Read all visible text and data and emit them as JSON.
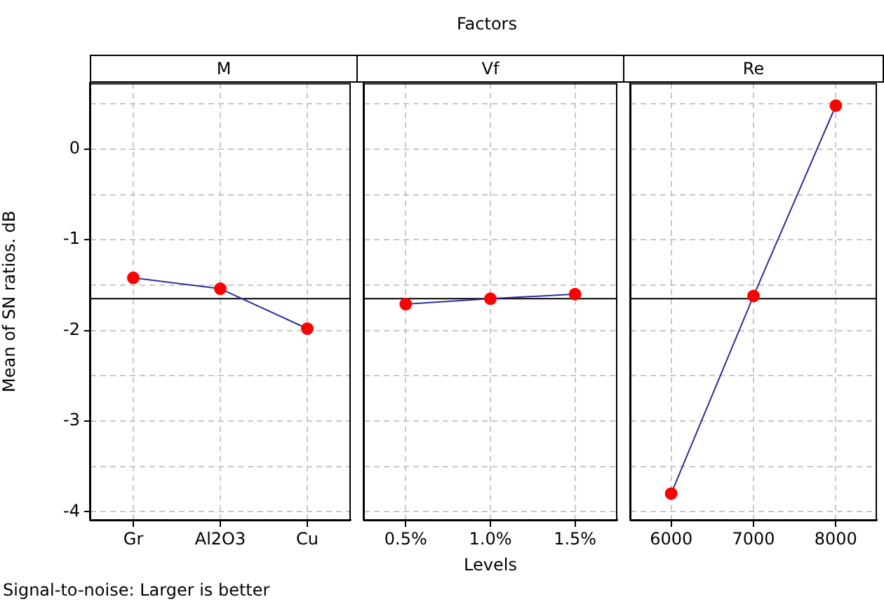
{
  "chart_data": [
    {
      "type": "line",
      "title": "M",
      "ylabel": "Mean of SN ratios. dB",
      "annotations": [
        "Factors",
        "Signal-to-noise: Larger is better"
      ],
      "categories": [
        "Gr",
        "Al2O3",
        "Cu"
      ],
      "series": [
        {
          "color": "#2e2e9a",
          "colors": [
            "#ff0000",
            "#ff0000",
            "#ff0000"
          ],
          "values": [
            -1.42,
            -1.54,
            -1.98
          ]
        }
      ],
      "ylim": [
        -4.09,
        0.73
      ],
      "yticks": [
        {
          "value": -4,
          "label": "-4"
        },
        {
          "value": -3.5,
          "label": null
        },
        {
          "value": -3,
          "label": "-3"
        },
        {
          "value": -2.5,
          "label": null
        },
        {
          "value": -2,
          "label": "-2"
        },
        {
          "value": -1.5,
          "label": null
        },
        {
          "value": -1,
          "label": "-1"
        },
        {
          "value": -0.5,
          "label": null
        },
        {
          "value": 0,
          "label": "0"
        },
        {
          "value": 0.5,
          "label": null
        }
      ],
      "ref_lines": [
        {
          "axis": "y",
          "value": -1.65,
          "color": "#000000"
        }
      ],
      "grid": true,
      "marker": "circle"
    },
    {
      "type": "line",
      "title": "Vf",
      "xlabel": "Levels",
      "categories": [
        "0.5%",
        "1.0%",
        "1.5%"
      ],
      "series": [
        {
          "color": "#2e2e9a",
          "colors": [
            "#ff0000",
            "#ff0000",
            "#ff0000"
          ],
          "values": [
            -1.71,
            -1.65,
            -1.6
          ]
        }
      ],
      "ylim": [
        -4.09,
        0.73
      ],
      "yticks": [
        -4,
        -3.5,
        -3,
        -2.5,
        -2,
        -1.5,
        -1,
        -0.5,
        0,
        0.5
      ],
      "ref_lines": [
        {
          "axis": "y",
          "value": -1.65,
          "color": "#000000"
        }
      ],
      "grid": true,
      "marker": "circle",
      "tick_labels": "x"
    },
    {
      "type": "line",
      "title": "Re",
      "categories": [
        "6000",
        "7000",
        "8000"
      ],
      "series": [
        {
          "color": "#2e2e9a",
          "colors": [
            "#ff0000",
            "#ff0000",
            "#ff0000"
          ],
          "values": [
            -3.8,
            -1.62,
            0.48
          ]
        }
      ],
      "ylim": [
        -4.09,
        0.73
      ],
      "yticks": [
        -4,
        -3.5,
        -3,
        -2.5,
        -2,
        -1.5,
        -1,
        -0.5,
        0,
        0.5
      ],
      "ref_lines": [
        {
          "axis": "y",
          "value": -1.65,
          "color": "#000000"
        }
      ],
      "grid": true,
      "marker": "circle",
      "tick_labels": "x"
    }
  ]
}
